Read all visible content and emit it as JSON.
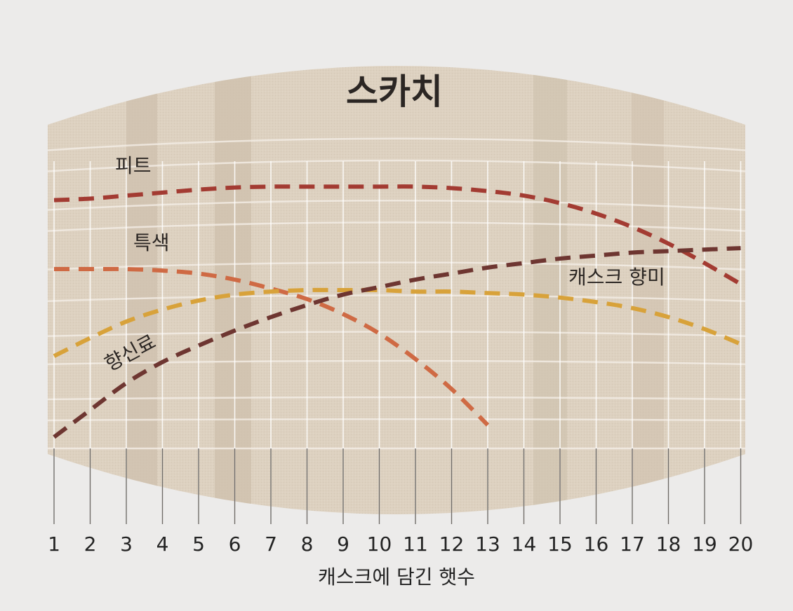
{
  "colors": {
    "page_background": "#ecebea",
    "panel": "#ddd1c0",
    "panel_dark_stripe": "#cfc2b0",
    "grid_line": "#ffffff",
    "tick_line": "#6e6a66"
  },
  "chart_data": {
    "type": "line",
    "title": "스카치",
    "xlabel": "캐스크에 담긴 햇수",
    "ylabel": "",
    "x": [
      1,
      2,
      3,
      4,
      5,
      6,
      7,
      8,
      9,
      10,
      11,
      12,
      13,
      14,
      15,
      16,
      17,
      18,
      19,
      20
    ],
    "x_ticks": [
      "1",
      "2",
      "3",
      "4",
      "5",
      "6",
      "7",
      "8",
      "9",
      "10",
      "11",
      "12",
      "13",
      "14",
      "15",
      "16",
      "17",
      "18",
      "19",
      "20"
    ],
    "ylim": [
      0,
      100
    ],
    "y_axis_shown": false,
    "grid": true,
    "legend": "labels placed next to each curve",
    "line_style": "dashed",
    "series": [
      {
        "name": "피트",
        "color": "#a33b32",
        "x": [
          1,
          2,
          3,
          4,
          5,
          6,
          7,
          8,
          9,
          10,
          11,
          12,
          13,
          14,
          15,
          16,
          17,
          18,
          19,
          20
        ],
        "values": [
          80,
          80.5,
          81.5,
          82.5,
          83.5,
          84.2,
          84.5,
          84.5,
          84.5,
          84.5,
          84.5,
          84,
          83,
          81.5,
          79,
          75.5,
          71,
          65.5,
          59,
          52
        ]
      },
      {
        "name": "특색",
        "color": "#cf6a44",
        "x": [
          1,
          2,
          3,
          4,
          5,
          6,
          7,
          8,
          9,
          10,
          11,
          12,
          13
        ],
        "values": [
          57,
          57,
          57,
          56.5,
          55.5,
          53.5,
          50.5,
          47,
          42,
          35.5,
          27,
          17,
          5
        ]
      },
      {
        "name": "캐스크 향미",
        "color": "#d8a23a",
        "x": [
          1,
          2,
          3,
          4,
          5,
          6,
          7,
          8,
          9,
          10,
          11,
          12,
          13,
          14,
          15,
          16,
          17,
          18,
          19,
          20
        ],
        "values": [
          28,
          34,
          39.5,
          43.5,
          46.5,
          48.5,
          49.5,
          50,
          50,
          50,
          49.5,
          49.5,
          49,
          48.5,
          47.5,
          46,
          44,
          41,
          37,
          32
        ]
      },
      {
        "name": "향신료",
        "color": "#6e3631",
        "x": [
          1,
          2,
          3,
          4,
          5,
          6,
          7,
          8,
          9,
          10,
          11,
          12,
          13,
          14,
          15,
          16,
          17,
          18,
          19,
          20
        ],
        "values": [
          1,
          10,
          19,
          26,
          31.5,
          36.5,
          41,
          45,
          48.5,
          51,
          53.5,
          55.5,
          57.5,
          59,
          60.5,
          61.5,
          62.5,
          63,
          63.5,
          64
        ]
      }
    ]
  }
}
